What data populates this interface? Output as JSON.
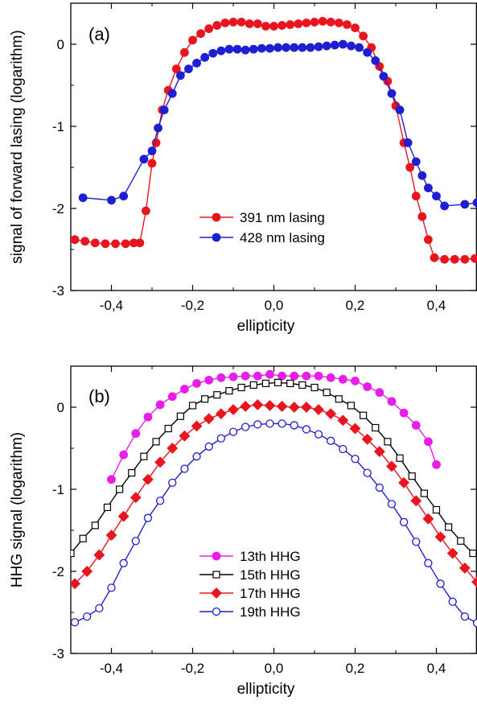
{
  "chart_data": [
    {
      "type": "line",
      "panel_label": "(a)",
      "xlabel": "ellipticity",
      "ylabel": "signal of forward lasing (logarithm)",
      "xlim": [
        -0.5,
        0.5
      ],
      "ylim": [
        -3,
        0.5
      ],
      "xticks": [
        -0.4,
        -0.2,
        0.0,
        0.2,
        0.4
      ],
      "xtick_labels": [
        "-0,4",
        "-0,2",
        "0,0",
        "0,2",
        "0,4"
      ],
      "yticks": [
        0,
        -1,
        -2,
        -3
      ],
      "ytick_labels": [
        "0",
        "-1",
        "-2",
        "-3"
      ],
      "grid": false,
      "legend_position": "lower-center",
      "series": [
        {
          "name": "391 nm lasing",
          "color": "#e8141e",
          "marker": "circle-filled",
          "x": [
            -0.49,
            -0.465,
            -0.44,
            -0.415,
            -0.39,
            -0.365,
            -0.345,
            -0.33,
            -0.315,
            -0.3,
            -0.29,
            -0.275,
            -0.26,
            -0.24,
            -0.22,
            -0.2,
            -0.18,
            -0.16,
            -0.14,
            -0.12,
            -0.1,
            -0.08,
            -0.06,
            -0.04,
            -0.02,
            0.0,
            0.02,
            0.04,
            0.06,
            0.08,
            0.1,
            0.12,
            0.14,
            0.16,
            0.18,
            0.2,
            0.22,
            0.24,
            0.26,
            0.28,
            0.3,
            0.32,
            0.335,
            0.35,
            0.365,
            0.38,
            0.395,
            0.42,
            0.445,
            0.47,
            0.495
          ],
          "y": [
            -2.38,
            -2.4,
            -2.42,
            -2.43,
            -2.43,
            -2.43,
            -2.42,
            -2.42,
            -2.03,
            -1.45,
            -1.2,
            -0.8,
            -0.56,
            -0.3,
            -0.1,
            0.05,
            0.13,
            0.19,
            0.23,
            0.26,
            0.27,
            0.27,
            0.25,
            0.25,
            0.22,
            0.22,
            0.23,
            0.24,
            0.25,
            0.26,
            0.27,
            0.28,
            0.27,
            0.26,
            0.24,
            0.2,
            0.1,
            -0.04,
            -0.27,
            -0.45,
            -0.75,
            -1.2,
            -1.5,
            -1.85,
            -2.1,
            -2.38,
            -2.6,
            -2.62,
            -2.62,
            -2.62,
            -2.61
          ]
        },
        {
          "name": "428 nm lasing",
          "color": "#1e1ed2",
          "marker": "circle-filled",
          "x": [
            -0.47,
            -0.4,
            -0.37,
            -0.32,
            -0.3,
            -0.285,
            -0.27,
            -0.25,
            -0.23,
            -0.21,
            -0.19,
            -0.17,
            -0.15,
            -0.13,
            -0.11,
            -0.09,
            -0.07,
            -0.05,
            -0.03,
            -0.01,
            0.01,
            0.03,
            0.05,
            0.07,
            0.09,
            0.11,
            0.13,
            0.15,
            0.17,
            0.19,
            0.21,
            0.23,
            0.25,
            0.27,
            0.29,
            0.31,
            0.33,
            0.35,
            0.365,
            0.38,
            0.4,
            0.42,
            0.47,
            0.5
          ],
          "y": [
            -1.87,
            -1.9,
            -1.85,
            -1.4,
            -1.3,
            -1.02,
            -0.8,
            -0.6,
            -0.38,
            -0.3,
            -0.23,
            -0.16,
            -0.11,
            -0.08,
            -0.06,
            -0.06,
            -0.07,
            -0.06,
            -0.05,
            -0.05,
            -0.04,
            -0.04,
            -0.04,
            -0.04,
            -0.04,
            -0.03,
            -0.02,
            -0.01,
            0.0,
            -0.02,
            -0.04,
            -0.1,
            -0.2,
            -0.39,
            -0.6,
            -0.8,
            -1.2,
            -1.43,
            -1.6,
            -1.75,
            -1.85,
            -1.97,
            -1.95,
            -1.93
          ]
        }
      ]
    },
    {
      "type": "line",
      "panel_label": "(b)",
      "xlabel": "ellipticity",
      "ylabel": "HHG signal (logarithm)",
      "xlim": [
        -0.5,
        0.5
      ],
      "ylim": [
        -3,
        0.5
      ],
      "xticks": [
        -0.4,
        -0.2,
        0.0,
        0.2,
        0.4
      ],
      "xtick_labels": [
        "-0,4",
        "-0,2",
        "0,0",
        "0,2",
        "0,4"
      ],
      "yticks": [
        0,
        -1,
        -2,
        -3
      ],
      "ytick_labels": [
        "0",
        "-1",
        "-2",
        "-3"
      ],
      "grid": false,
      "legend_position": "lower-center",
      "series": [
        {
          "name": "13th HHG",
          "color": "#e61ee6",
          "marker": "circle-filled",
          "x": [
            -0.4,
            -0.37,
            -0.34,
            -0.31,
            -0.28,
            -0.25,
            -0.22,
            -0.19,
            -0.16,
            -0.13,
            -0.1,
            -0.07,
            -0.04,
            -0.01,
            0.02,
            0.05,
            0.08,
            0.11,
            0.14,
            0.17,
            0.2,
            0.23,
            0.26,
            0.29,
            0.32,
            0.35,
            0.38,
            0.4
          ],
          "y": [
            -0.88,
            -0.58,
            -0.32,
            -0.12,
            0.03,
            0.13,
            0.22,
            0.29,
            0.33,
            0.36,
            0.37,
            0.38,
            0.38,
            0.4,
            0.38,
            0.38,
            0.38,
            0.38,
            0.36,
            0.34,
            0.32,
            0.25,
            0.18,
            0.07,
            -0.07,
            -0.22,
            -0.42,
            -0.7
          ]
        },
        {
          "name": "15th HHG",
          "color": "#000000",
          "marker": "square-open",
          "x": [
            -0.5,
            -0.47,
            -0.44,
            -0.41,
            -0.38,
            -0.35,
            -0.32,
            -0.29,
            -0.26,
            -0.23,
            -0.2,
            -0.17,
            -0.14,
            -0.11,
            -0.08,
            -0.05,
            -0.02,
            0.01,
            0.04,
            0.07,
            0.1,
            0.13,
            0.16,
            0.19,
            0.22,
            0.25,
            0.28,
            0.31,
            0.34,
            0.37,
            0.4,
            0.43,
            0.46,
            0.49
          ],
          "y": [
            -1.78,
            -1.6,
            -1.44,
            -1.22,
            -1.0,
            -0.8,
            -0.6,
            -0.42,
            -0.26,
            -0.11,
            0.02,
            0.1,
            0.15,
            0.2,
            0.24,
            0.27,
            0.29,
            0.3,
            0.29,
            0.27,
            0.24,
            0.18,
            0.1,
            0.02,
            -0.1,
            -0.25,
            -0.42,
            -0.62,
            -0.84,
            -1.05,
            -1.25,
            -1.46,
            -1.63,
            -1.78
          ]
        },
        {
          "name": "17th HHG",
          "color": "#e8141e",
          "marker": "diamond-filled",
          "x": [
            -0.49,
            -0.46,
            -0.43,
            -0.4,
            -0.37,
            -0.34,
            -0.31,
            -0.28,
            -0.25,
            -0.22,
            -0.19,
            -0.16,
            -0.13,
            -0.1,
            -0.07,
            -0.04,
            -0.01,
            0.02,
            0.05,
            0.08,
            0.11,
            0.14,
            0.17,
            0.2,
            0.23,
            0.26,
            0.29,
            0.32,
            0.35,
            0.38,
            0.41,
            0.44,
            0.47,
            0.5
          ],
          "y": [
            -2.15,
            -2.0,
            -1.8,
            -1.56,
            -1.33,
            -1.1,
            -0.88,
            -0.67,
            -0.5,
            -0.35,
            -0.23,
            -0.14,
            -0.08,
            -0.03,
            0.01,
            0.03,
            0.02,
            0.01,
            0.0,
            0.0,
            -0.03,
            -0.08,
            -0.16,
            -0.26,
            -0.39,
            -0.54,
            -0.72,
            -0.92,
            -1.14,
            -1.36,
            -1.58,
            -1.78,
            -1.96,
            -2.13
          ]
        },
        {
          "name": "19th HHG",
          "color": "#1e1ed2",
          "marker": "circle-open",
          "x": [
            -0.49,
            -0.46,
            -0.43,
            -0.4,
            -0.37,
            -0.34,
            -0.31,
            -0.28,
            -0.25,
            -0.22,
            -0.19,
            -0.16,
            -0.13,
            -0.1,
            -0.07,
            -0.04,
            -0.01,
            0.02,
            0.05,
            0.08,
            0.11,
            0.14,
            0.17,
            0.2,
            0.23,
            0.26,
            0.29,
            0.32,
            0.35,
            0.38,
            0.41,
            0.44,
            0.47,
            0.5
          ],
          "y": [
            -2.62,
            -2.55,
            -2.45,
            -2.2,
            -1.9,
            -1.63,
            -1.35,
            -1.14,
            -0.92,
            -0.75,
            -0.6,
            -0.48,
            -0.38,
            -0.3,
            -0.24,
            -0.21,
            -0.2,
            -0.2,
            -0.22,
            -0.27,
            -0.33,
            -0.41,
            -0.51,
            -0.63,
            -0.8,
            -0.98,
            -1.18,
            -1.4,
            -1.64,
            -1.9,
            -2.15,
            -2.37,
            -2.55,
            -2.63
          ]
        }
      ]
    }
  ]
}
